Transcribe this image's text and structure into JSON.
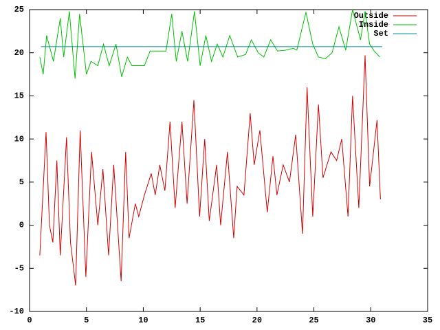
{
  "chart_data": {
    "type": "line",
    "xlim": [
      0,
      35
    ],
    "xticks": [
      0,
      5,
      10,
      15,
      20,
      25,
      30,
      35
    ],
    "ylim": [
      -10,
      25
    ],
    "yticks": [
      -10,
      -5,
      0,
      5,
      10,
      15,
      20,
      25
    ],
    "legend": "top-right",
    "series": [
      {
        "name": "Outside",
        "color": "#d00000",
        "x": [
          0.9,
          1.45,
          1.75,
          2.05,
          2.4,
          2.7,
          3.25,
          3.6,
          4.05,
          4.45,
          4.95,
          5.45,
          6.0,
          6.45,
          6.95,
          7.4,
          8.05,
          8.45,
          8.75,
          9.3,
          9.6,
          10.1,
          10.7,
          11.05,
          11.45,
          11.9,
          12.35,
          12.8,
          13.4,
          13.85,
          14.45,
          14.95,
          15.4,
          15.8,
          16.45,
          16.8,
          17.4,
          17.95,
          18.25,
          18.85,
          19.4,
          19.75,
          20.25,
          20.9,
          21.4,
          21.75,
          22.3,
          22.85,
          23.4,
          24.0,
          24.4,
          24.9,
          25.4,
          25.8,
          26.5,
          27.0,
          27.45,
          28.0,
          28.4,
          28.95,
          29.5,
          29.9,
          30.2,
          30.55,
          30.85
        ],
        "values": [
          -3.5,
          10.8,
          0,
          -2,
          7.5,
          -3.5,
          10.2,
          -2,
          -7,
          11,
          -6,
          8.5,
          0,
          6.5,
          -3.5,
          7,
          -6.5,
          8.5,
          -1.5,
          2.5,
          1,
          3.5,
          6,
          3.5,
          7,
          4,
          12,
          2,
          12,
          2.5,
          14.5,
          1,
          10,
          0.5,
          7,
          0,
          8.5,
          -1.5,
          4.5,
          3.5,
          13,
          7,
          11,
          1.5,
          8,
          3.5,
          7,
          5,
          10.5,
          -1,
          16,
          1,
          14,
          5.5,
          8.5,
          7.5,
          10,
          1,
          15,
          2,
          19.7,
          4.5,
          8,
          12.2,
          3
        ]
      },
      {
        "name": "Inside",
        "color": "#00c000",
        "x": [
          0.9,
          1.2,
          1.5,
          2.1,
          2.7,
          3.0,
          3.5,
          4.0,
          4.4,
          5.0,
          5.4,
          6.0,
          6.5,
          7.0,
          7.6,
          8.1,
          8.6,
          9.0,
          9.6,
          10.1,
          10.6,
          11.4,
          12.0,
          12.5,
          12.9,
          13.4,
          13.9,
          14.5,
          15.0,
          15.5,
          16.0,
          16.5,
          17.0,
          17.6,
          18.3,
          19.0,
          19.5,
          20.1,
          20.6,
          21.2,
          21.8,
          22.5,
          23.2,
          23.5,
          24.3,
          24.9,
          25.4,
          26.0,
          26.6,
          27.2,
          27.8,
          28.4,
          29.1,
          29.5,
          29.9,
          30.3,
          30.8
        ],
        "values": [
          19.5,
          17.5,
          22,
          19,
          24,
          19.5,
          24.8,
          17,
          24.5,
          17.5,
          19,
          18.5,
          21,
          18.5,
          21,
          17.2,
          19.5,
          18.5,
          18.5,
          18.5,
          20.2,
          20.2,
          20.2,
          24.5,
          19,
          22.5,
          19,
          24.8,
          18.5,
          22,
          19,
          21,
          19.5,
          22,
          19.5,
          19.8,
          21.5,
          20,
          19.5,
          21.5,
          20.2,
          20.3,
          20.5,
          20.3,
          24.7,
          21,
          19.5,
          19.3,
          20,
          23,
          20.3,
          25,
          21.5,
          24.8,
          21,
          20.2,
          19.5
        ]
      },
      {
        "name": "Set",
        "color": "#0090a0",
        "x": [
          1,
          31
        ],
        "values": [
          20.7,
          20.7
        ]
      }
    ]
  }
}
